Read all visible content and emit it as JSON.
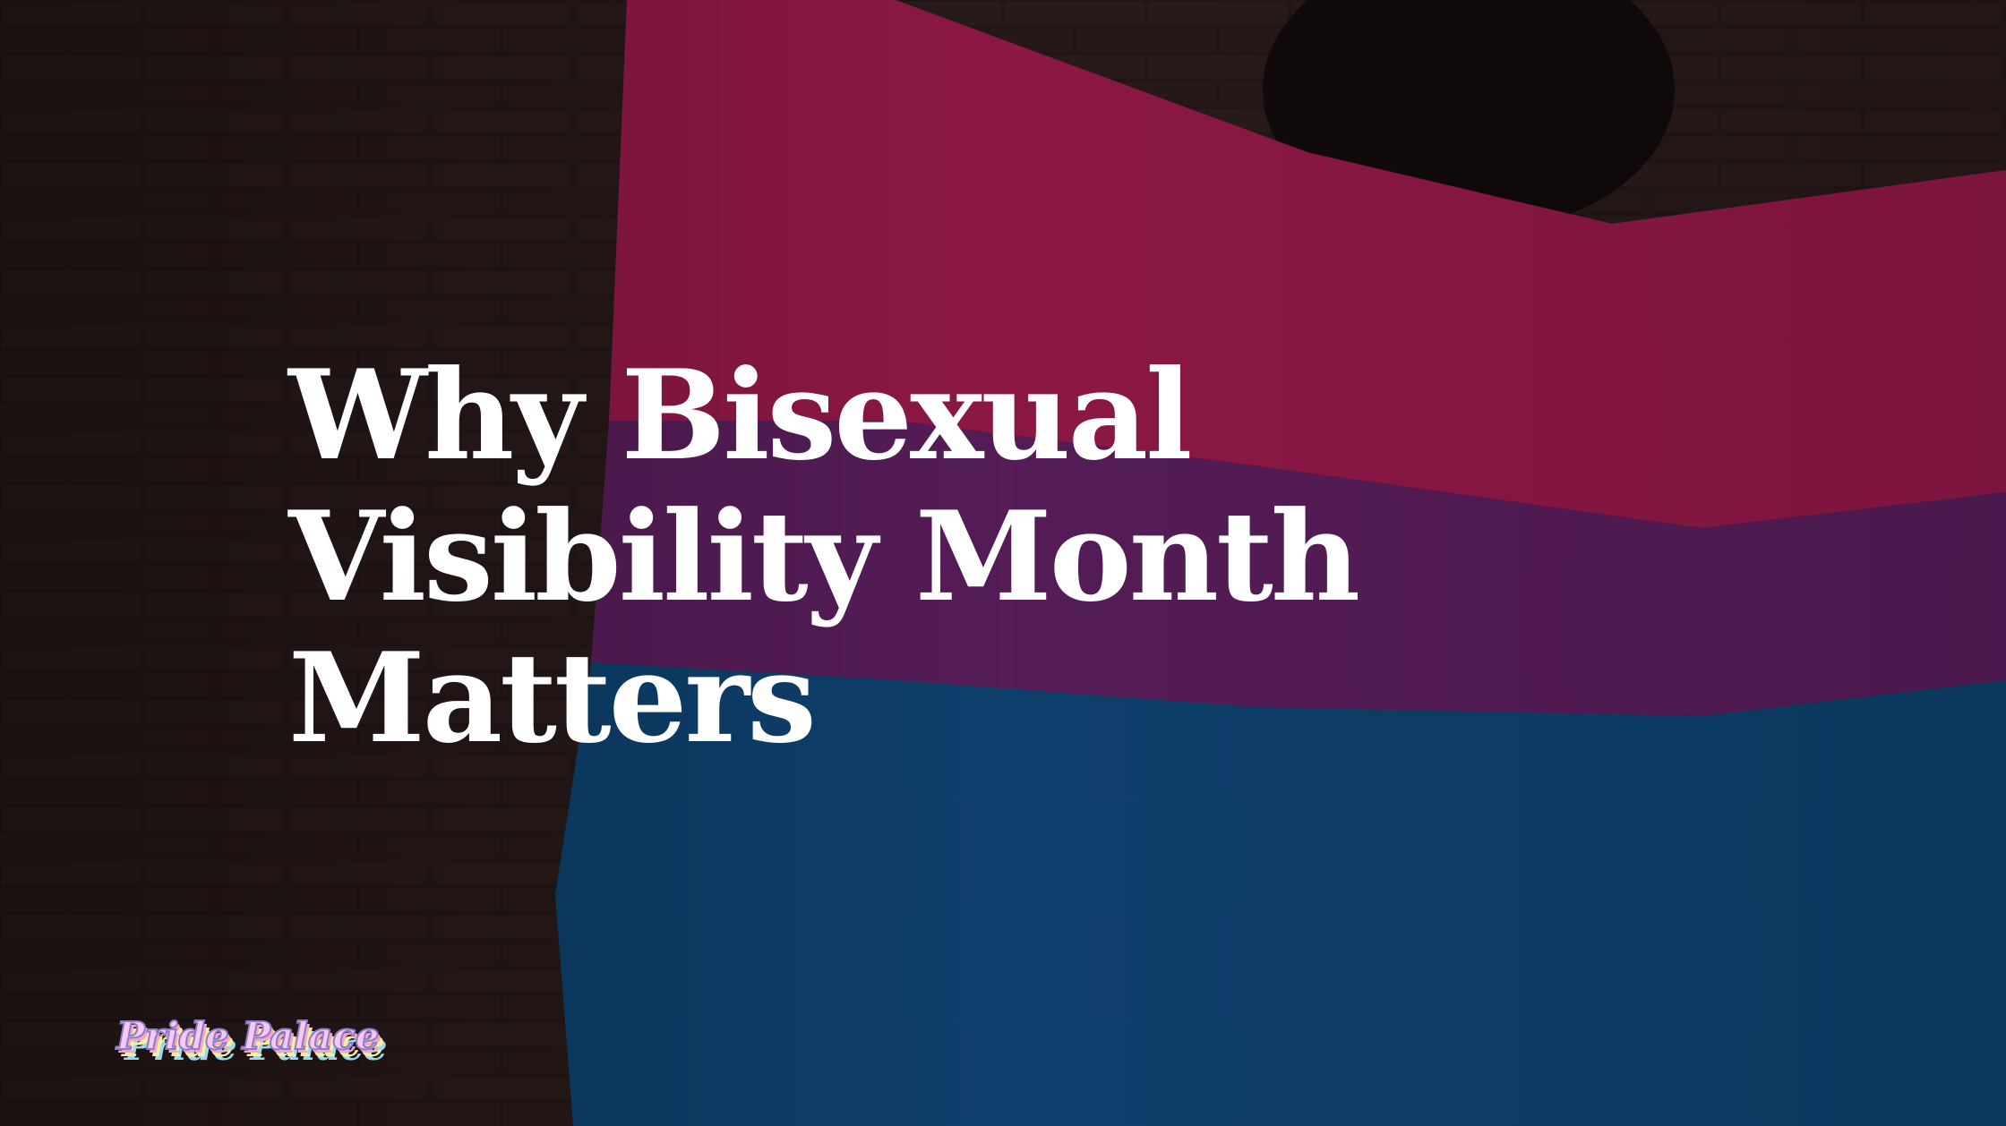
{
  "headline": {
    "lines": [
      "Why Bisexual",
      "Visibility Month",
      "Matters"
    ]
  },
  "logo": {
    "text": "Pride Palace"
  },
  "colors": {
    "flag_pink": "#b0194f",
    "flag_purple": "#6a1f6a",
    "flag_blue": "#0d4d82",
    "background": "#1e1514",
    "logo_fill": "#f6c8f2",
    "logo_outline": "#8a7cc6"
  }
}
